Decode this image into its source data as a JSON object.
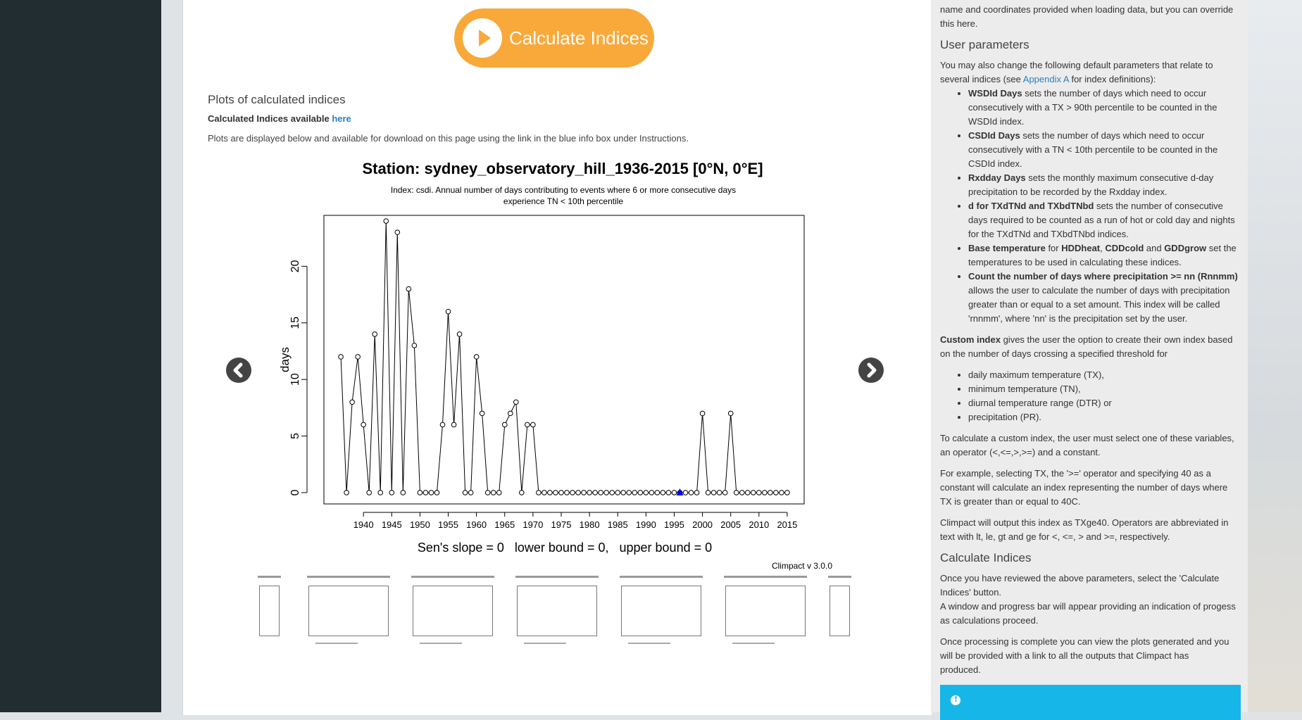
{
  "calc_button": {
    "label": "Calculate Indices"
  },
  "plots": {
    "heading": "Plots of calculated indices",
    "available_prefix": "Calculated Indices available ",
    "available_link": "here",
    "description": "Plots are displayed below and available for download on this page using the link in the blue info box under Instructions."
  },
  "chart_data": {
    "type": "line",
    "title": "Station: sydney_observatory_hill_1936-2015 [0°N, 0°E]",
    "subtitle_line1": "Index: csdi. Annual number of days contributing to events where 6 or more consecutive days",
    "subtitle_line2": "experience TN < 10th percentile",
    "ylabel": "days",
    "xlabel": "",
    "xlim": [
      1933,
      2018
    ],
    "ylim": [
      -1,
      24.5
    ],
    "x_ticks": [
      1940,
      1945,
      1950,
      1955,
      1960,
      1965,
      1970,
      1975,
      1980,
      1985,
      1990,
      1995,
      2000,
      2005,
      2010,
      2015
    ],
    "y_ticks": [
      0,
      5,
      10,
      15,
      20
    ],
    "series": [
      {
        "x": [
          1936,
          1937,
          1938,
          1939,
          1940,
          1941,
          1942,
          1943,
          1944,
          1945,
          1946,
          1947,
          1948,
          1949,
          1950,
          1951,
          1952,
          1953,
          1954,
          1955,
          1956,
          1957,
          1958,
          1959,
          1960,
          1961,
          1962,
          1963,
          1964,
          1965,
          1966,
          1967,
          1968,
          1969,
          1970,
          1971,
          1972,
          1973,
          1974,
          1975,
          1976,
          1977,
          1978,
          1979,
          1980,
          1981,
          1982,
          1983,
          1984,
          1985,
          1986,
          1987,
          1988,
          1989,
          1990,
          1991,
          1992,
          1993,
          1994,
          1995,
          1996,
          1997,
          1998,
          1999,
          2000,
          2001,
          2002,
          2003,
          2004,
          2005,
          2006,
          2007,
          2008,
          2009,
          2010,
          2011,
          2012,
          2013,
          2014,
          2015
        ],
        "values": [
          12,
          0,
          8,
          12,
          6,
          0,
          14,
          0,
          24,
          0,
          23,
          0,
          18,
          13,
          0,
          0,
          0,
          0,
          6,
          16,
          6,
          14,
          0,
          0,
          12,
          7,
          0,
          0,
          0,
          6,
          7,
          8,
          0,
          6,
          6,
          0,
          0,
          0,
          0,
          0,
          0,
          0,
          0,
          0,
          0,
          0,
          0,
          0,
          0,
          0,
          0,
          0,
          0,
          0,
          0,
          0,
          0,
          0,
          0,
          0,
          0,
          0,
          0,
          0,
          7,
          0,
          0,
          0,
          0,
          7,
          0,
          0,
          0,
          0,
          0,
          0,
          0,
          0,
          0,
          0
        ]
      }
    ],
    "marker_point": {
      "x": 1996,
      "y": 0,
      "color": "#0000ff",
      "shape": "triangle"
    },
    "trend_text": "Sen's slope = 0   lower bound = 0,   upper bound = 0",
    "credit": "Climpact v 3.0.0",
    "grid": false
  },
  "right_panel": {
    "intro": [
      "name and coordinates provided when loading data, but you can override",
      "this here."
    ],
    "user_params_heading": "User parameters",
    "user_params_text1": "You may also change the following default parameters that relate to",
    "user_params_text2_prefix": "several indices (see ",
    "user_params_link": "Appendix A",
    "user_params_text2_suffix": " for index definitions):",
    "bullets": [
      [
        "WSDId Days",
        " sets the number of days which need to occur",
        "consecutively with a TX > 90th percentile to be counted in the",
        "WSDId index."
      ],
      [
        "CSDId Days",
        " sets the number of days which need to occur",
        "consecutively with a TN < 10th percentile to be counted in the",
        "CSDId index."
      ],
      [
        "Rxdday Days",
        " sets the monthly maximum consecutive d-day",
        "precipitation to be recorded by the Rxdday index."
      ],
      [
        "d for TXdTNd and TXbdTNbd",
        " sets the number of consecutive",
        "days required to be counted as a run of hot or cold day and nights",
        "for the TXdTNd and TXbdTNbd indices."
      ]
    ],
    "base_temp": {
      "b1": "Base temperature",
      "t1": " for ",
      "b2": "HDDheat",
      "t2": ", ",
      "b3": "CDDcold",
      "t3": " and ",
      "b4": "GDDgrow",
      "t4": " set the",
      "line2": "temperatures to be used in calculating these indices."
    },
    "count_bullet": [
      "Count the number of days where precipitation >= nn (Rnnmm)",
      "allows the user to calculate the number of days with precipitation",
      "greater than or equal to a set amount. This index will be called",
      "'rnnmm', where 'nn' is the precipitation set by the user."
    ],
    "custom_index_bold": "Custom index",
    "custom_index_text": " gives the user the option to create their own index based",
    "custom_index_text2": "on the number of days crossing a specified threshold for",
    "variables": [
      "daily maximum temperature (TX),",
      "minimum temperature (TN),",
      "diurnal temperature range (DTR) or",
      "precipitation (PR)."
    ],
    "calc_custom": [
      "To calculate a custom index, the user must select one of these variables,",
      "an operator (<,<=,>,>=) and a constant."
    ],
    "example": [
      "For example, selecting TX, the '>=' operator and specifying 40 as a",
      "constant will calculate an index representing the number of days where",
      "TX is greater than or equal to 40C."
    ],
    "output_note": [
      "Climpact will output this index as TXge40. Operators are abbreviated in",
      "text with lt, le, gt and ge for <, <=, > and >=, respectively."
    ],
    "calc_heading": "Calculate Indices",
    "calc_text": [
      "Once you have reviewed the above parameters, select the 'Calculate",
      "Indices' button.",
      "A window and progress bar will appear providing an indication of progess",
      "as calculations proceed."
    ],
    "final_text": [
      "Once processing is complete you can view the plots generated and you",
      "will be provided with a link to all the outputs that Climpact has",
      "produced."
    ]
  }
}
